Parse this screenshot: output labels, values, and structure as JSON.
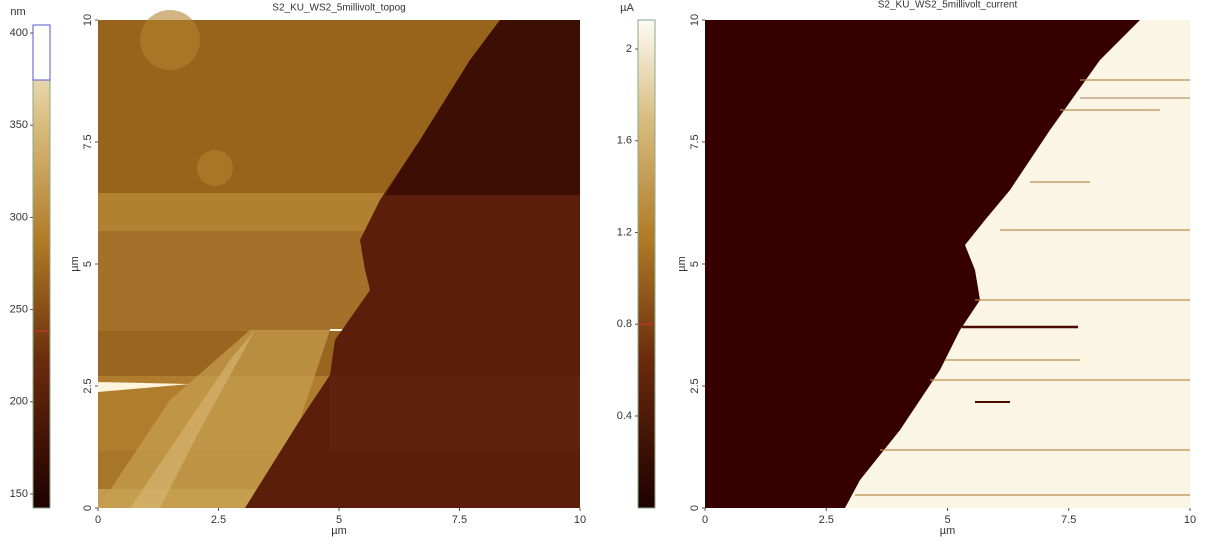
{
  "panels": [
    {
      "title": "S2_KU_WS2_5millivolt_topog",
      "unit": "nm",
      "colorbar_ticks": [
        "400",
        "350",
        "300",
        "250",
        "200",
        "150"
      ],
      "x_ticks": [
        "0",
        "2.5",
        "5",
        "7.5",
        "10"
      ],
      "y_ticks": [
        "0",
        "2.5",
        "5",
        "7.5",
        "10"
      ],
      "x_label": "µm",
      "y_label": "µm"
    },
    {
      "title": "S2_KU_WS2_5millivolt_current",
      "unit": "µA",
      "colorbar_ticks": [
        "2",
        "1.6",
        "1.2",
        "0.8",
        "0.4"
      ],
      "x_ticks": [
        "0",
        "2.5",
        "5",
        "7.5",
        "10"
      ],
      "y_ticks": [
        "0",
        "2.5",
        "5",
        "7.5",
        "10"
      ],
      "x_label": "µm",
      "y_label": "µm"
    }
  ]
}
